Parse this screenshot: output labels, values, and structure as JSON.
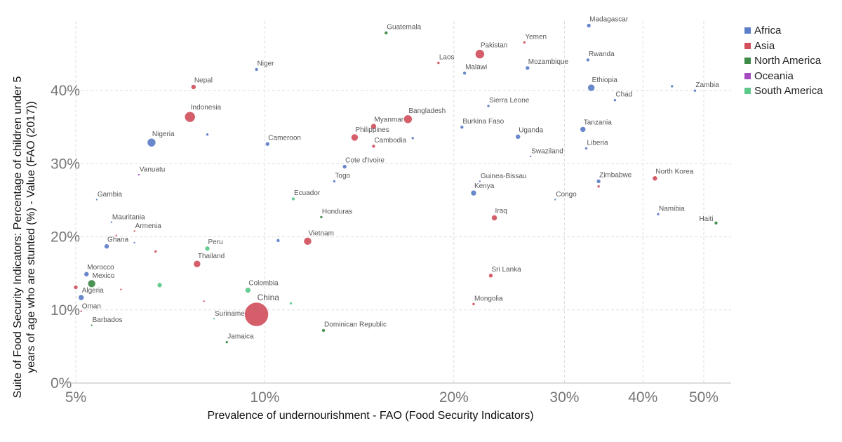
{
  "chart_data": {
    "type": "scatter",
    "xlabel": "Prevalence of undernourishment - FAO (Food Security Indicators)",
    "ylabel": "Suite of Food Security Indicators: Percentage of children under 5 years of age who are stunted (%) - Value (FAO (2017))",
    "xlim": [
      4.5,
      52.3
    ],
    "ylim": [
      0,
      49.5
    ],
    "x_ticks": [
      "5%",
      "10%",
      "20%",
      "30%",
      "40%",
      "50%"
    ],
    "x_tick_values": [
      5,
      10,
      20,
      30,
      40,
      50
    ],
    "y_ticks": [
      "0%",
      "10%",
      "20%",
      "30%",
      "40%"
    ],
    "y_tick_values": [
      0,
      10,
      20,
      30,
      40
    ],
    "grid": true,
    "legend_position": "right",
    "legend": [
      {
        "name": "Africa",
        "color": "#5b7ec7"
      },
      {
        "name": "Asia",
        "color": "#d0505c"
      },
      {
        "name": "North America",
        "color": "#3e8a47"
      },
      {
        "name": "Oceania",
        "color": "#a54cc0"
      },
      {
        "name": "South America",
        "color": "#5cc98a"
      }
    ],
    "points": [
      {
        "label": "Guatemala",
        "x": 15.6,
        "y": 47.9,
        "region": "North America",
        "r": 2.5
      },
      {
        "label": "Madagascar",
        "x": 32.8,
        "y": 48.9,
        "region": "Africa",
        "r": 3
      },
      {
        "label": "Yemen",
        "x": 25.9,
        "y": 46.6,
        "region": "Asia",
        "r": 2
      },
      {
        "label": "Pakistan",
        "x": 22.0,
        "y": 45.0,
        "region": "Asia",
        "r": 6.5
      },
      {
        "label": "Laos",
        "x": 18.9,
        "y": 43.8,
        "region": "Asia",
        "r": 2
      },
      {
        "label": "Rwanda",
        "x": 32.7,
        "y": 44.2,
        "region": "Africa",
        "r": 2.5
      },
      {
        "label": "Niger",
        "x": 9.7,
        "y": 42.9,
        "region": "Africa",
        "r": 2.5
      },
      {
        "label": "Malawi",
        "x": 20.8,
        "y": 42.4,
        "region": "Africa",
        "r": 2.5
      },
      {
        "label": "Mozambique",
        "x": 26.2,
        "y": 43.1,
        "region": "Africa",
        "r": 3
      },
      {
        "label": "Nepal",
        "x": 7.7,
        "y": 40.5,
        "region": "Asia",
        "r": 3.5
      },
      {
        "label": "Ethiopia",
        "x": 33.1,
        "y": 40.4,
        "region": "Africa",
        "r": 5
      },
      {
        "label": "",
        "x": 44.5,
        "y": 40.6,
        "region": "Africa",
        "r": 2
      },
      {
        "label": "Zambia",
        "x": 48.4,
        "y": 40.0,
        "region": "Africa",
        "r": 2
      },
      {
        "label": "Chad",
        "x": 36.1,
        "y": 38.7,
        "region": "Africa",
        "r": 2
      },
      {
        "label": "Sierra Leone",
        "x": 22.7,
        "y": 37.9,
        "region": "Africa",
        "r": 2
      },
      {
        "label": "Indonesia",
        "x": 7.6,
        "y": 36.4,
        "region": "Asia",
        "r": 7.5
      },
      {
        "label": "Bangladesh",
        "x": 16.9,
        "y": 36.1,
        "region": "Asia",
        "r": 6
      },
      {
        "label": "Myanmar",
        "x": 14.9,
        "y": 35.1,
        "region": "Asia",
        "r": 4
      },
      {
        "label": "Burkina Faso",
        "x": 20.6,
        "y": 35.0,
        "region": "Africa",
        "r": 2.5
      },
      {
        "label": "Tanzania",
        "x": 32.1,
        "y": 34.7,
        "region": "Africa",
        "r": 4
      },
      {
        "label": "Nigeria",
        "x": 6.6,
        "y": 32.9,
        "region": "Africa",
        "r": 6
      },
      {
        "label": "",
        "x": 8.1,
        "y": 34.0,
        "region": "Africa",
        "r": 2
      },
      {
        "label": "Philippines",
        "x": 13.9,
        "y": 33.6,
        "region": "Asia",
        "r": 5
      },
      {
        "label": "Uganda",
        "x": 25.3,
        "y": 33.7,
        "region": "Africa",
        "r": 3.5
      },
      {
        "label": "",
        "x": 17.2,
        "y": 33.5,
        "region": "Africa",
        "r": 2
      },
      {
        "label": "Cameroon",
        "x": 10.1,
        "y": 32.7,
        "region": "Africa",
        "r": 3
      },
      {
        "label": "Cambodia",
        "x": 14.9,
        "y": 32.4,
        "region": "Asia",
        "r": 2.5
      },
      {
        "label": "Liberia",
        "x": 32.5,
        "y": 32.1,
        "region": "Africa",
        "r": 2
      },
      {
        "label": "Swaziland",
        "x": 26.5,
        "y": 31.0,
        "region": "Africa",
        "r": 1.5
      },
      {
        "label": "Cote d'Ivoire",
        "x": 13.4,
        "y": 29.6,
        "region": "Africa",
        "r": 3
      },
      {
        "label": "Vanuatu",
        "x": 6.3,
        "y": 28.5,
        "region": "Oceania",
        "r": 1.5
      },
      {
        "label": "North Korea",
        "x": 41.8,
        "y": 28.0,
        "region": "Asia",
        "r": 3.5
      },
      {
        "label": "Togo",
        "x": 12.9,
        "y": 27.6,
        "region": "Africa",
        "r": 2
      },
      {
        "label": "Guinea-Bissau",
        "x": 22.0,
        "y": 27.6,
        "region": "Africa",
        "r": 1.5
      },
      {
        "label": "Zimbabwe",
        "x": 34.0,
        "y": 27.6,
        "region": "Africa",
        "r": 3
      },
      {
        "label": "",
        "x": 34.0,
        "y": 26.9,
        "region": "Asia",
        "r": 2
      },
      {
        "label": "Kenya",
        "x": 21.5,
        "y": 26.0,
        "region": "Africa",
        "r": 4
      },
      {
        "label": "Gambia",
        "x": 5.4,
        "y": 25.1,
        "region": "Africa",
        "r": 1.5
      },
      {
        "label": "Ecuador",
        "x": 11.1,
        "y": 25.2,
        "region": "South America",
        "r": 2.5
      },
      {
        "label": "Congo",
        "x": 29.0,
        "y": 25.1,
        "region": "Africa",
        "r": 1.5
      },
      {
        "label": "Namibia",
        "x": 42.3,
        "y": 23.1,
        "region": "Africa",
        "r": 2
      },
      {
        "label": "Honduras",
        "x": 12.3,
        "y": 22.7,
        "region": "North America",
        "r": 2
      },
      {
        "label": "Iraq",
        "x": 23.2,
        "y": 22.6,
        "region": "Asia",
        "r": 4
      },
      {
        "label": "Haiti",
        "x": 52.3,
        "y": 21.9,
        "region": "North America",
        "r": 2.5
      },
      {
        "label": "Mauritania",
        "x": 5.7,
        "y": 22.0,
        "region": "Africa",
        "r": 1.5
      },
      {
        "label": "Armenia",
        "x": 6.2,
        "y": 20.8,
        "region": "Asia",
        "r": 1.5
      },
      {
        "label": "",
        "x": 5.8,
        "y": 20.2,
        "region": "Asia",
        "r": 1.5
      },
      {
        "label": "Vietnam",
        "x": 11.7,
        "y": 19.4,
        "region": "Asia",
        "r": 5.5
      },
      {
        "label": "",
        "x": 10.5,
        "y": 19.5,
        "region": "Africa",
        "r": 2.5
      },
      {
        "label": "Ghana",
        "x": 5.6,
        "y": 18.7,
        "region": "Africa",
        "r": 3.5
      },
      {
        "label": "",
        "x": 6.2,
        "y": 19.2,
        "region": "Africa",
        "r": 1.5
      },
      {
        "label": "Peru",
        "x": 8.1,
        "y": 18.4,
        "region": "South America",
        "r": 3.5
      },
      {
        "label": "",
        "x": 6.7,
        "y": 18.0,
        "region": "Asia",
        "r": 2
      },
      {
        "label": "Thailand",
        "x": 7.8,
        "y": 16.3,
        "region": "Asia",
        "r": 5
      },
      {
        "label": "Sri Lanka",
        "x": 22.9,
        "y": 14.7,
        "region": "Asia",
        "r": 3
      },
      {
        "label": "Morocco",
        "x": 5.2,
        "y": 14.9,
        "region": "Africa",
        "r": 3.5
      },
      {
        "label": "Mexico",
        "x": 5.3,
        "y": 13.6,
        "region": "North America",
        "r": 5.5
      },
      {
        "label": "",
        "x": 6.8,
        "y": 13.4,
        "region": "South America",
        "r": 3.5
      },
      {
        "label": "",
        "x": 5.0,
        "y": 13.1,
        "region": "Asia",
        "r": 3
      },
      {
        "label": "",
        "x": 5.9,
        "y": 12.8,
        "region": "Asia",
        "r": 1.5
      },
      {
        "label": "Colombia",
        "x": 9.4,
        "y": 12.7,
        "region": "South America",
        "r": 4
      },
      {
        "label": "Algeria",
        "x": 5.1,
        "y": 11.7,
        "region": "Africa",
        "r": 4
      },
      {
        "label": "",
        "x": 8.0,
        "y": 11.2,
        "region": "Asia",
        "r": 1.5
      },
      {
        "label": "",
        "x": 11.0,
        "y": 10.9,
        "region": "South America",
        "r": 2
      },
      {
        "label": "Mongolia",
        "x": 21.5,
        "y": 10.8,
        "region": "Asia",
        "r": 2
      },
      {
        "label": "Oman",
        "x": 5.1,
        "y": 9.8,
        "region": "Asia",
        "r": 1.5
      },
      {
        "label": "China",
        "x": 9.7,
        "y": 9.4,
        "region": "Asia",
        "r": 17
      },
      {
        "label": "Suriname",
        "x": 8.3,
        "y": 8.8,
        "region": "South America",
        "r": 1.5
      },
      {
        "label": "Barbados",
        "x": 5.3,
        "y": 7.9,
        "region": "North America",
        "r": 1.5
      },
      {
        "label": "Dominican Republic",
        "x": 12.4,
        "y": 7.2,
        "region": "North America",
        "r": 2.5
      },
      {
        "label": "Jamaica",
        "x": 8.7,
        "y": 5.6,
        "region": "North America",
        "r": 2
      }
    ]
  }
}
